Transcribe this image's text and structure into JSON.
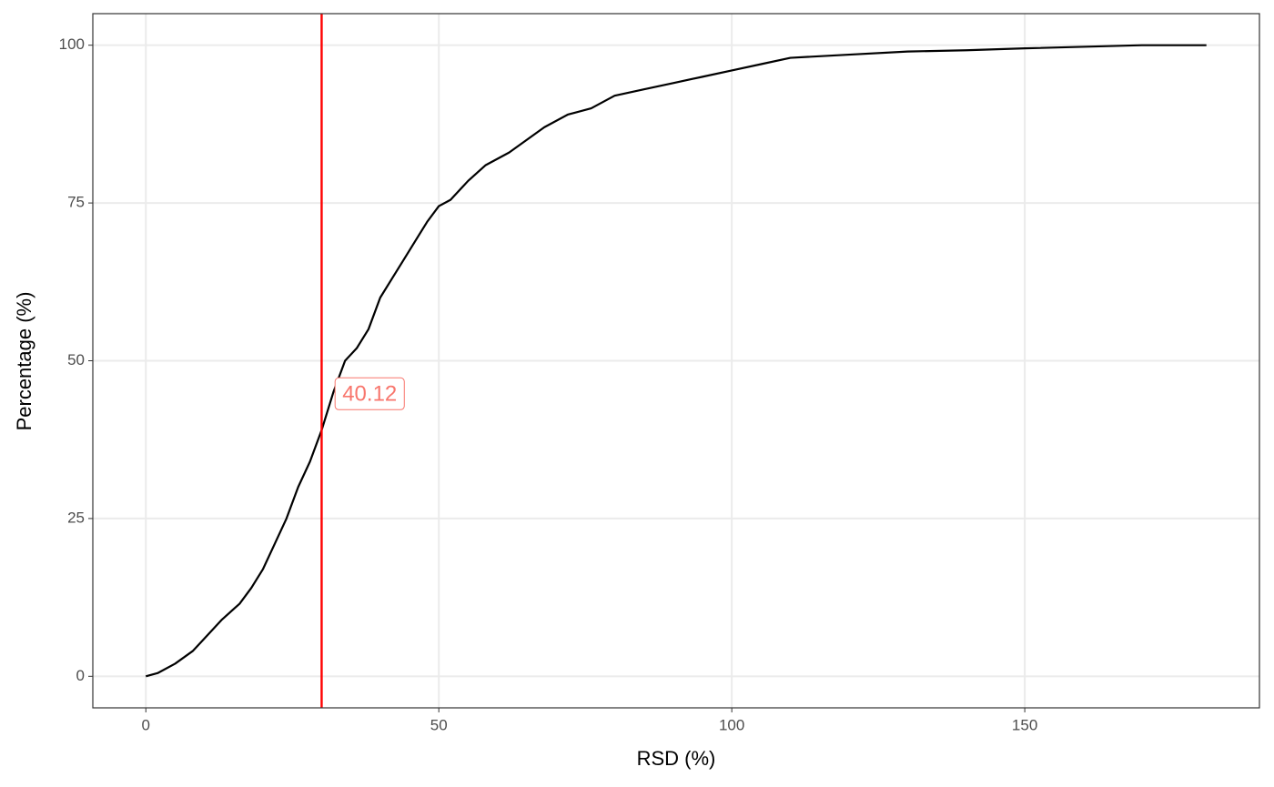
{
  "chart_data": {
    "type": "line",
    "x_label": "RSD (%)",
    "y_label": "Percentage (%)",
    "x": [
      0,
      2,
      5,
      8,
      10,
      13,
      16,
      18,
      20,
      22,
      24,
      26,
      28,
      30,
      32,
      34,
      36,
      38,
      40,
      42,
      44,
      46,
      48,
      50,
      52,
      55,
      58,
      62,
      65,
      68,
      72,
      76,
      80,
      85,
      90,
      95,
      100,
      105,
      110,
      120,
      130,
      140,
      150,
      170,
      181
    ],
    "series": [
      {
        "color": "#000000",
        "values": [
          0,
          0.5,
          2,
          4,
          6,
          9,
          11.5,
          14,
          17,
          21,
          25,
          30,
          34,
          39,
          45,
          50,
          52,
          55,
          60,
          63,
          66,
          69,
          72,
          74.5,
          75.5,
          78.5,
          81,
          83,
          85,
          87,
          89,
          90,
          92,
          93,
          94,
          95,
          96,
          97,
          98,
          98.5,
          99,
          99.2,
          99.5,
          100,
          100
        ]
      }
    ],
    "xlim": [
      -9.05,
      190.05
    ],
    "xticks": [
      0,
      50,
      100,
      150
    ],
    "ylim": [
      -5,
      105
    ],
    "yticks": [
      0,
      25,
      50,
      75,
      100
    ],
    "grid": true,
    "reference_line": {
      "x": 30,
      "color": "#ff0000"
    },
    "annotations": [
      {
        "text": "40.12",
        "x": 38.2,
        "y": 44.6,
        "color": "#f8766d"
      }
    ]
  }
}
